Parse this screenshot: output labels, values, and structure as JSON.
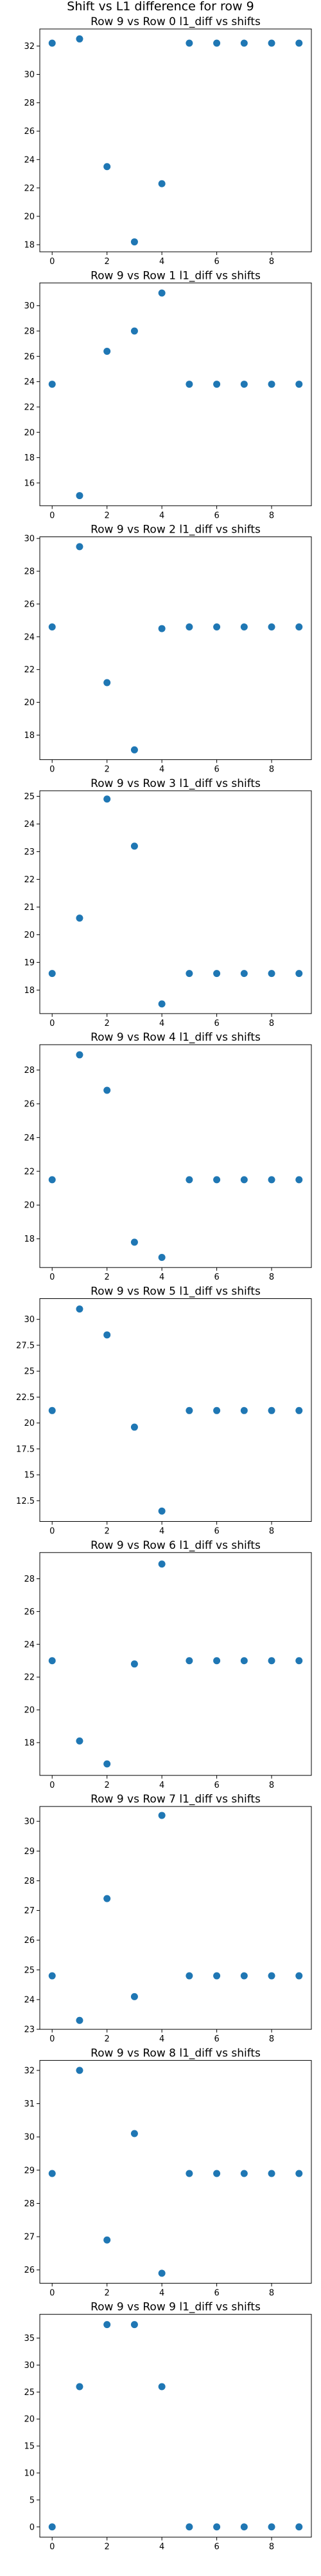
{
  "figure": {
    "suptitle": "Shift vs L1 difference for row 9"
  },
  "colors": {
    "marker": "#1f77b4"
  },
  "chart_data": [
    {
      "type": "scatter",
      "title": "Row 9 vs Row 0 l1_diff vs shifts",
      "x": [
        0,
        1,
        2,
        3,
        4,
        5,
        6,
        7,
        8,
        9
      ],
      "y": [
        32.2,
        32.5,
        23.5,
        18.2,
        22.3,
        32.2,
        32.2,
        32.2,
        32.2,
        32.2
      ],
      "xlim": [
        -0.45,
        9.45
      ],
      "ylim": [
        17.5,
        33.2
      ],
      "xticks": [
        0,
        2,
        4,
        6,
        8
      ],
      "yticks": [
        18,
        20,
        22,
        24,
        26,
        28,
        30,
        32
      ],
      "grid": false
    },
    {
      "type": "scatter",
      "title": "Row 9 vs Row 1 l1_diff vs shifts",
      "x": [
        0,
        1,
        2,
        3,
        4,
        5,
        6,
        7,
        8,
        9
      ],
      "y": [
        23.8,
        15.0,
        26.4,
        28.0,
        31.0,
        23.8,
        23.8,
        23.8,
        23.8,
        23.8
      ],
      "xlim": [
        -0.45,
        9.45
      ],
      "ylim": [
        14.2,
        31.8
      ],
      "xticks": [
        0,
        2,
        4,
        6,
        8
      ],
      "yticks": [
        16,
        18,
        20,
        22,
        24,
        26,
        28,
        30
      ],
      "grid": false
    },
    {
      "type": "scatter",
      "title": "Row 9 vs Row 2 l1_diff vs shifts",
      "x": [
        0,
        1,
        2,
        3,
        4,
        5,
        6,
        7,
        8,
        9
      ],
      "y": [
        24.6,
        29.5,
        21.2,
        17.1,
        24.5,
        24.6,
        24.6,
        24.6,
        24.6,
        24.6
      ],
      "xlim": [
        -0.45,
        9.45
      ],
      "ylim": [
        16.5,
        30.1
      ],
      "xticks": [
        0,
        2,
        4,
        6,
        8
      ],
      "yticks": [
        18,
        20,
        22,
        24,
        26,
        28,
        30
      ],
      "grid": false
    },
    {
      "type": "scatter",
      "title": "Row 9 vs Row 3 l1_diff vs shifts",
      "x": [
        0,
        1,
        2,
        3,
        4,
        5,
        6,
        7,
        8,
        9
      ],
      "y": [
        18.6,
        20.6,
        24.9,
        23.2,
        17.5,
        18.6,
        18.6,
        18.6,
        18.6,
        18.6
      ],
      "xlim": [
        -0.45,
        9.45
      ],
      "ylim": [
        17.15,
        25.2
      ],
      "xticks": [
        0,
        2,
        4,
        6,
        8
      ],
      "yticks": [
        18,
        19,
        20,
        21,
        22,
        23,
        24,
        25
      ],
      "grid": false
    },
    {
      "type": "scatter",
      "title": "Row 9 vs Row 4 l1_diff vs shifts",
      "x": [
        0,
        1,
        2,
        3,
        4,
        5,
        6,
        7,
        8,
        9
      ],
      "y": [
        21.5,
        28.9,
        26.8,
        17.8,
        16.9,
        21.5,
        21.5,
        21.5,
        21.5,
        21.5
      ],
      "xlim": [
        -0.45,
        9.45
      ],
      "ylim": [
        16.3,
        29.5
      ],
      "xticks": [
        0,
        2,
        4,
        6,
        8
      ],
      "yticks": [
        18,
        20,
        22,
        24,
        26,
        28
      ],
      "grid": false
    },
    {
      "type": "scatter",
      "title": "Row 9 vs Row 5 l1_diff vs shifts",
      "x": [
        0,
        1,
        2,
        3,
        4,
        5,
        6,
        7,
        8,
        9
      ],
      "y": [
        21.2,
        31.0,
        28.5,
        19.6,
        11.5,
        21.2,
        21.2,
        21.2,
        21.2,
        21.2
      ],
      "xlim": [
        -0.45,
        9.45
      ],
      "ylim": [
        10.5,
        32.0
      ],
      "xticks": [
        0,
        2,
        4,
        6,
        8
      ],
      "yticks": [
        12.5,
        15.0,
        17.5,
        20.0,
        22.5,
        25.0,
        27.5,
        30.0
      ],
      "grid": false
    },
    {
      "type": "scatter",
      "title": "Row 9 vs Row 6 l1_diff vs shifts",
      "x": [
        0,
        1,
        2,
        3,
        4,
        5,
        6,
        7,
        8,
        9
      ],
      "y": [
        23.0,
        18.1,
        16.7,
        22.8,
        28.9,
        23.0,
        23.0,
        23.0,
        23.0,
        23.0
      ],
      "xlim": [
        -0.45,
        9.45
      ],
      "ylim": [
        16.0,
        29.6
      ],
      "xticks": [
        0,
        2,
        4,
        6,
        8
      ],
      "yticks": [
        18,
        20,
        22,
        24,
        26,
        28
      ],
      "grid": false
    },
    {
      "type": "scatter",
      "title": "Row 9 vs Row 7 l1_diff vs shifts",
      "x": [
        0,
        1,
        2,
        3,
        4,
        5,
        6,
        7,
        8,
        9
      ],
      "y": [
        24.8,
        23.3,
        27.4,
        24.1,
        30.2,
        24.8,
        24.8,
        24.8,
        24.8,
        24.8
      ],
      "xlim": [
        -0.45,
        9.45
      ],
      "ylim": [
        23.0,
        30.5
      ],
      "xticks": [
        0,
        2,
        4,
        6,
        8
      ],
      "yticks": [
        23,
        24,
        25,
        26,
        27,
        28,
        29,
        30
      ],
      "grid": false
    },
    {
      "type": "scatter",
      "title": "Row 9 vs Row 8 l1_diff vs shifts",
      "x": [
        0,
        1,
        2,
        3,
        4,
        5,
        6,
        7,
        8,
        9
      ],
      "y": [
        28.9,
        32.0,
        26.9,
        30.1,
        25.9,
        28.9,
        28.9,
        28.9,
        28.9,
        28.9
      ],
      "xlim": [
        -0.45,
        9.45
      ],
      "ylim": [
        25.6,
        32.3
      ],
      "xticks": [
        0,
        2,
        4,
        6,
        8
      ],
      "yticks": [
        26,
        27,
        28,
        29,
        30,
        31,
        32
      ],
      "grid": false
    },
    {
      "type": "scatter",
      "title": "Row 9 vs Row 9 l1_diff vs shifts",
      "x": [
        0,
        1,
        2,
        3,
        4,
        5,
        6,
        7,
        8,
        9
      ],
      "y": [
        0,
        26.0,
        37.5,
        37.5,
        26.0,
        0,
        0,
        0,
        0,
        0
      ],
      "xlim": [
        -0.45,
        9.45
      ],
      "ylim": [
        -1.9,
        39.4
      ],
      "xticks": [
        0,
        2,
        4,
        6,
        8
      ],
      "yticks": [
        0,
        5,
        10,
        15,
        20,
        25,
        30,
        35
      ],
      "grid": false
    }
  ]
}
